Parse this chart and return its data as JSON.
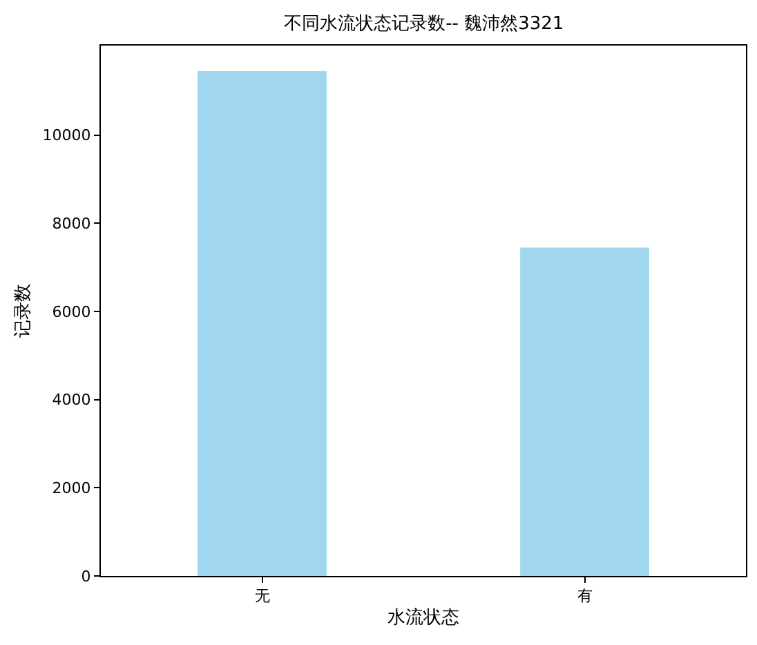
{
  "chart_data": {
    "type": "bar",
    "title": "不同水流状态记录数-- 魏沛然3321",
    "xlabel": "水流状态",
    "ylabel": "记录数",
    "categories": [
      "无",
      "有"
    ],
    "values": [
      11450,
      7450
    ],
    "color": "#a0d7ee",
    "ylim": [
      0,
      12030
    ],
    "yticks": [
      0,
      2000,
      4000,
      6000,
      8000,
      10000
    ],
    "grid": false
  }
}
